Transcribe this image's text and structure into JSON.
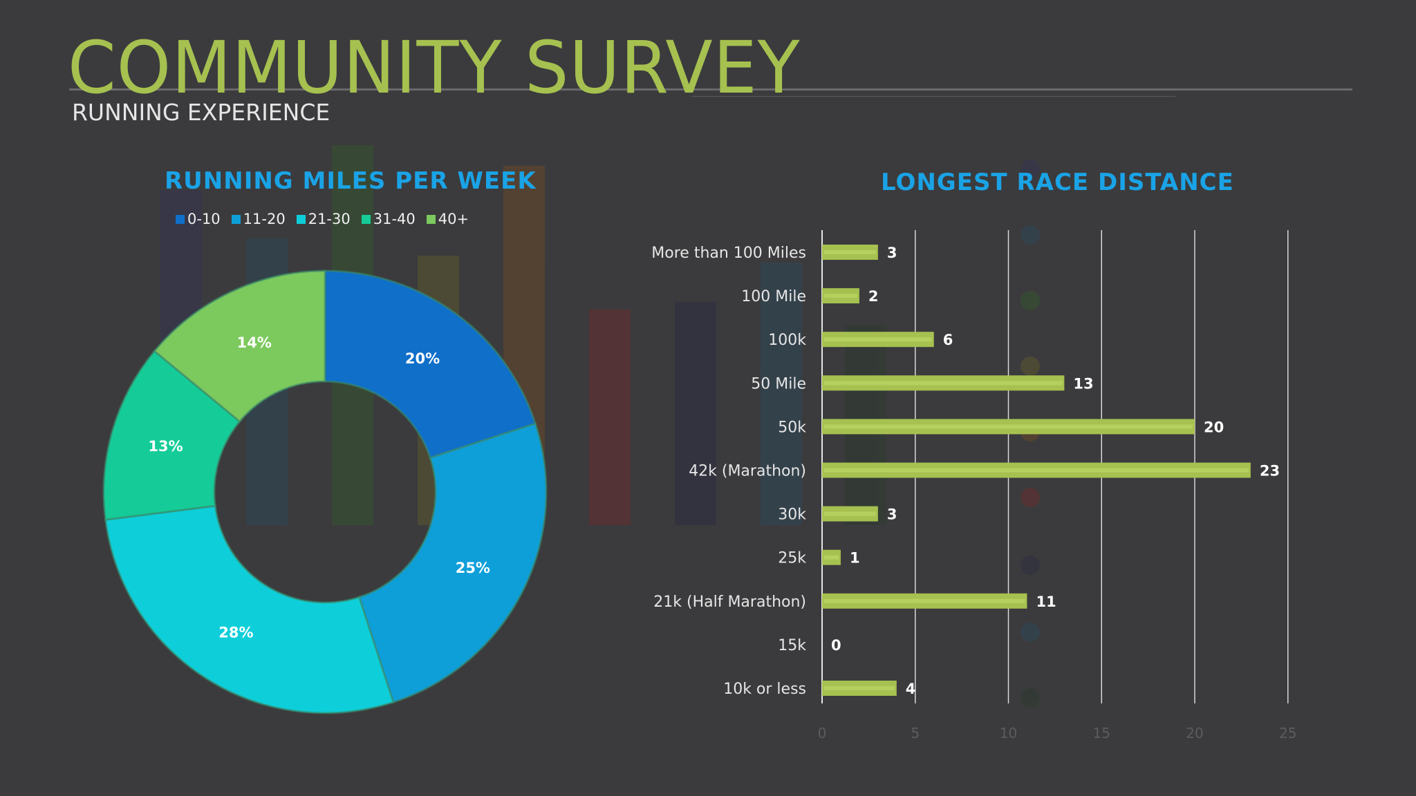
{
  "slide": {
    "title": "COMMUNITY SURVEY",
    "subtitle": "RUNNING EXPERIENCE",
    "background": "#3b3b3d",
    "title_color": "#a6c150"
  },
  "chart_data": [
    {
      "type": "pie",
      "subtype": "donut",
      "title": "RUNNING MILES PER WEEK",
      "categories": [
        "0-10",
        "11-20",
        "21-30",
        "31-40",
        "40+"
      ],
      "values": [
        20,
        25,
        28,
        13,
        14
      ],
      "data_labels": [
        "20%",
        "25%",
        "28%",
        "13%",
        "14%"
      ],
      "colors": [
        "#0f6fc9",
        "#0e9fd9",
        "#0ecfd9",
        "#15cc98",
        "#7cc95e"
      ],
      "legend": "top",
      "title_color": "#1aa3e6"
    },
    {
      "type": "bar",
      "orientation": "horizontal",
      "title": "LONGEST RACE DISTANCE",
      "categories": [
        "More than 100 Miles",
        "100 Mile",
        "100k",
        "50 Mile",
        "50k",
        "42k (Marathon)",
        "30k",
        "25k",
        "21k (Half Marathon)",
        "15k",
        "10k or less"
      ],
      "values": [
        3,
        2,
        6,
        13,
        20,
        23,
        3,
        1,
        11,
        0,
        4
      ],
      "xlim": [
        0,
        25
      ],
      "xticks": [
        0,
        5,
        10,
        15,
        20,
        25
      ],
      "grid": true,
      "bar_color": "#a6c150",
      "title_color": "#1aa3e6"
    }
  ]
}
